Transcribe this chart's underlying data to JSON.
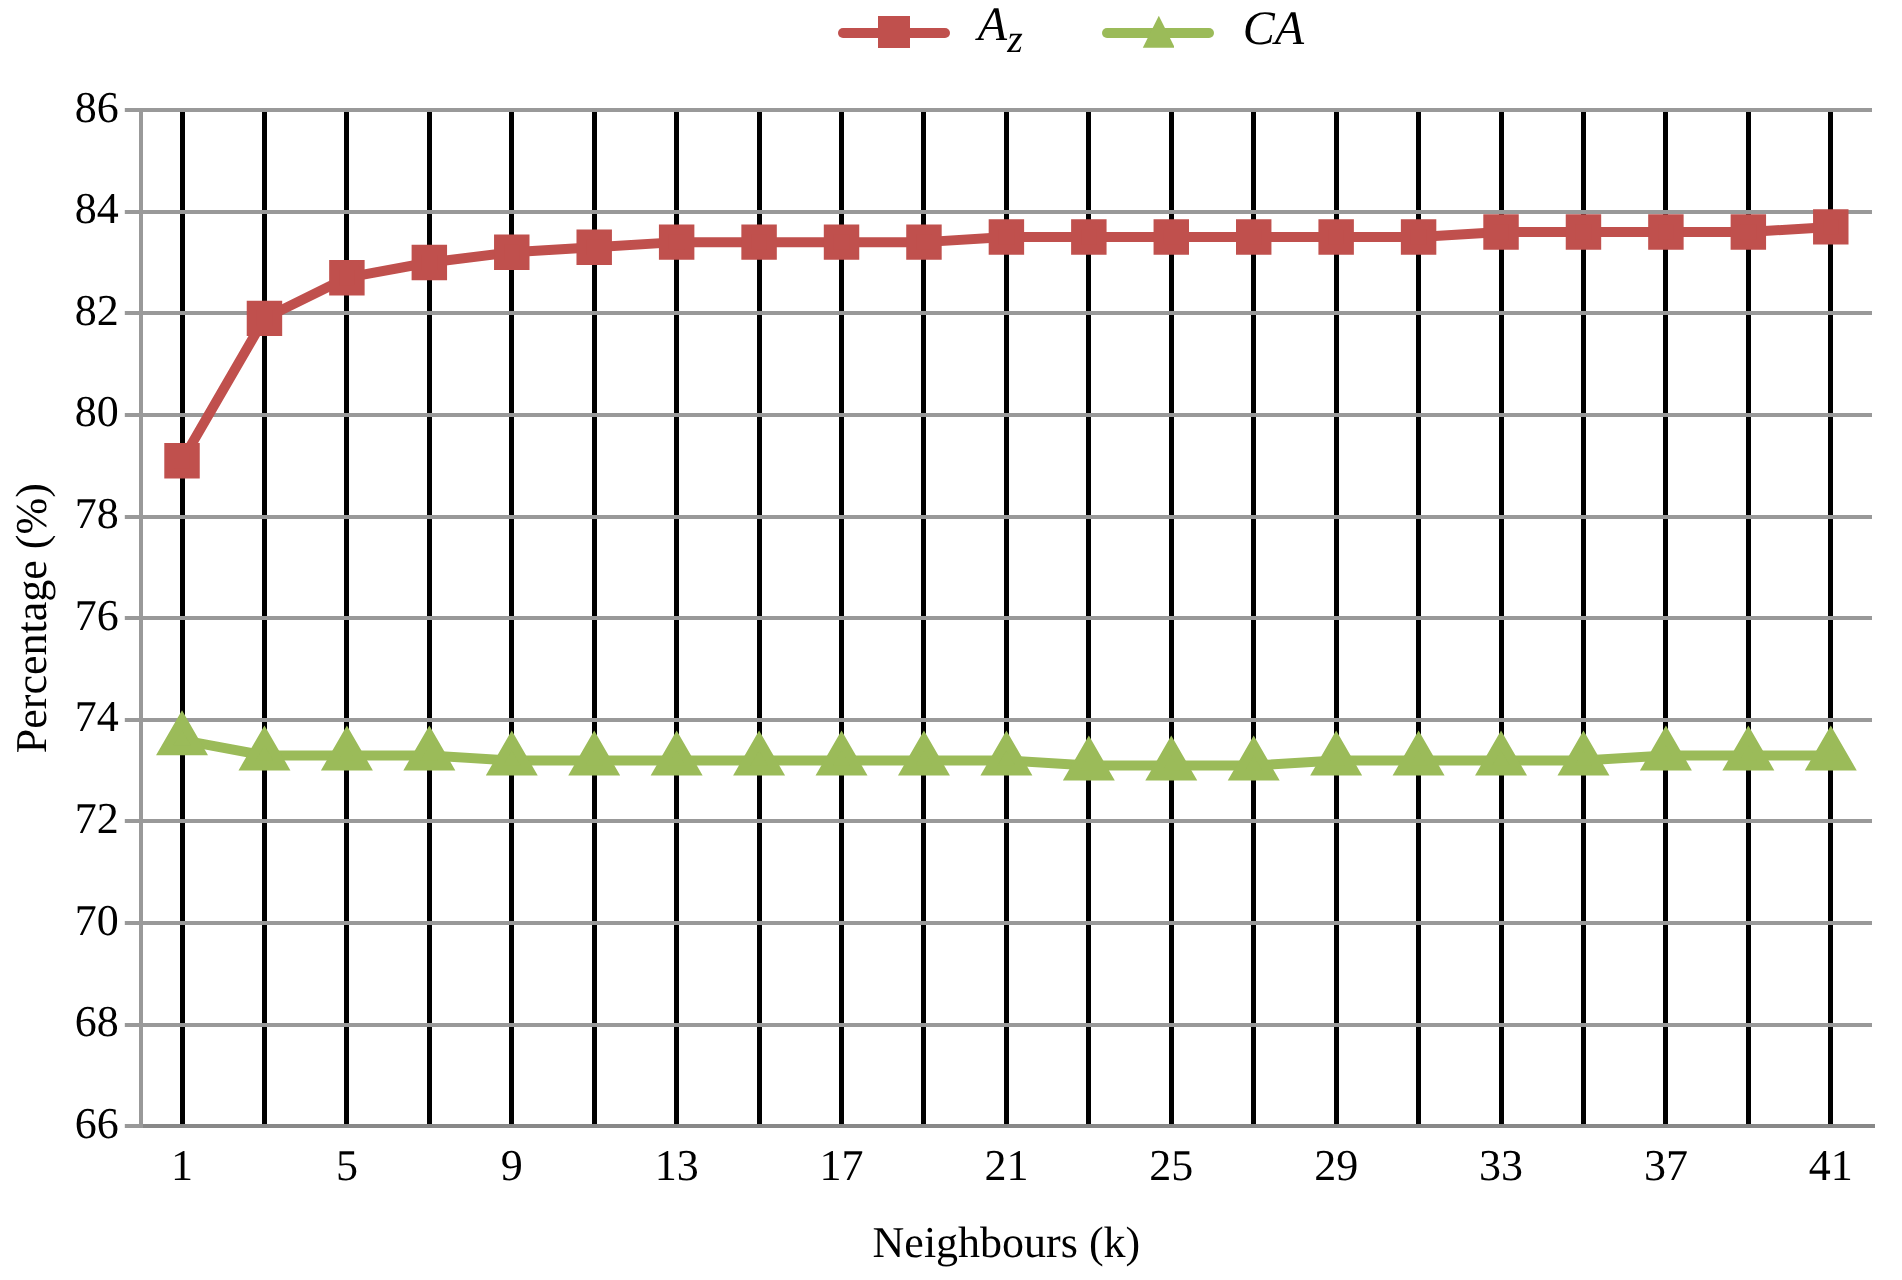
{
  "chart_data": {
    "type": "line",
    "xlabel": "Neighbours (k)",
    "ylabel": "Percentage (%)",
    "categories": [
      "1",
      null,
      "5",
      null,
      "9",
      null,
      "13",
      null,
      "17",
      null,
      "21",
      null,
      "25",
      null,
      "29",
      null,
      "33",
      null,
      "37",
      null,
      "41"
    ],
    "series": [
      {
        "name": "A$_{z}$",
        "color": "#c0504d",
        "marker": "square",
        "values": [
          79.1,
          81.9,
          82.7,
          83.0,
          83.2,
          83.3,
          83.4,
          83.4,
          83.4,
          83.4,
          83.5,
          83.5,
          83.5,
          83.5,
          83.5,
          83.5,
          83.6,
          83.6,
          83.6,
          83.6,
          83.7
        ]
      },
      {
        "name": "CA",
        "color": "#9bbb59",
        "marker": "triangle",
        "values": [
          73.6,
          73.3,
          73.3,
          73.3,
          73.2,
          73.2,
          73.2,
          73.2,
          73.2,
          73.2,
          73.2,
          73.1,
          73.1,
          73.1,
          73.2,
          73.2,
          73.2,
          73.2,
          73.3,
          73.3,
          73.3
        ]
      }
    ],
    "ylim": [
      66,
      86
    ],
    "yticks": [
      66,
      68,
      70,
      72,
      74,
      76,
      78,
      80,
      82,
      84,
      86
    ],
    "grid": true,
    "legend": "top"
  }
}
